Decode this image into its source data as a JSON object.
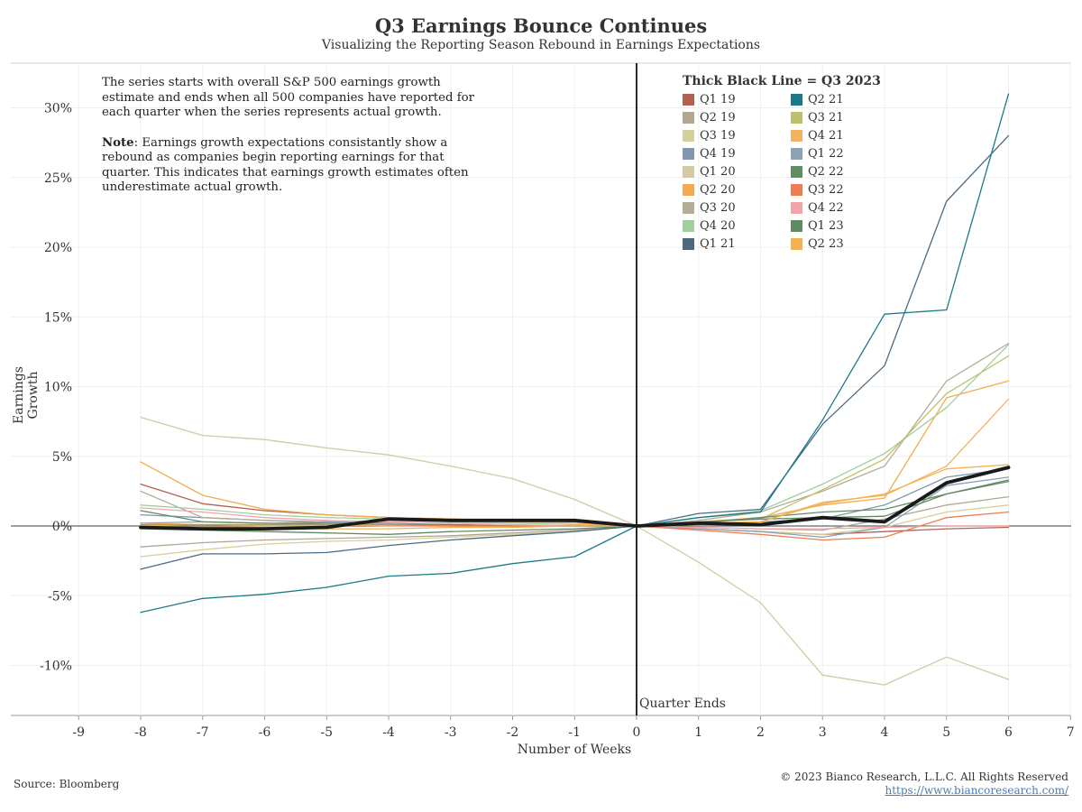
{
  "title": "Q3 Earnings Bounce Continues",
  "subtitle": "Visualizing the Reporting Season Rebound in Earnings Expectations",
  "note": {
    "paragraph1": "The series starts with overall S&P 500 earnings growth estimate and ends when all 500 companies have reported for each quarter when the series represents actual growth.",
    "note_label": "Note",
    "paragraph2": ": Earnings growth expectations consistantly show a rebound as companies begin reporting earnings for that quarter. This indicates that earnings growth estimates often underestimate actual growth."
  },
  "legend_title": "Thick Black Line = Q3 2023",
  "quarter_ends_label": "Quarter Ends",
  "footer": {
    "source": "Source: Bloomberg",
    "copyright": "© 2023 Bianco Research, L.L.C. All Rights Reserved",
    "url": "https://www.biancoresearch.com/"
  },
  "chart_data": {
    "type": "line",
    "xlabel": "Number of Weeks",
    "ylabel": "Earnings Growth",
    "xlim": [
      -9,
      7
    ],
    "ylim": [
      -13.5,
      33
    ],
    "x_ticks": [
      -9,
      -8,
      -7,
      -6,
      -5,
      -4,
      -3,
      -2,
      -1,
      0,
      1,
      2,
      3,
      4,
      5,
      6,
      7
    ],
    "y_ticks": [
      -10,
      -5,
      0,
      5,
      10,
      15,
      20,
      25,
      30
    ],
    "y_tick_labels": [
      "-10%",
      "-5%",
      "0%",
      "5%",
      "10%",
      "15%",
      "20%",
      "25%",
      "30%"
    ],
    "x": [
      -8,
      -7,
      -6,
      -5,
      -4,
      -3,
      -2,
      -1,
      0,
      1,
      2,
      3,
      4,
      5,
      6
    ],
    "grid": true,
    "legend_position": "top-right",
    "series": [
      {
        "name": "Q1 19",
        "color": "#b5614f",
        "values": [
          3.0,
          1.6,
          1.1,
          0.8,
          0.6,
          0.5,
          0.4,
          0.3,
          0.0,
          -0.2,
          -0.4,
          -0.6,
          -0.4,
          -0.2,
          -0.1
        ]
      },
      {
        "name": "Q2 19",
        "color": "#b3a792",
        "values": [
          -1.5,
          -1.2,
          -1.0,
          -0.9,
          -0.8,
          -0.7,
          -0.5,
          -0.3,
          0.0,
          -0.1,
          -0.2,
          -0.3,
          0.5,
          1.5,
          2.1
        ]
      },
      {
        "name": "Q3 19",
        "color": "#d5cf9c",
        "values": [
          -2.2,
          -1.7,
          -1.3,
          -1.1,
          -1.0,
          -0.8,
          -0.6,
          -0.4,
          0.0,
          -0.2,
          -0.4,
          -0.6,
          -0.1,
          1.0,
          1.5
        ]
      },
      {
        "name": "Q4 19",
        "color": "#8097ad",
        "values": [
          0.8,
          0.6,
          0.4,
          0.3,
          0.2,
          0.1,
          0.0,
          0.0,
          0.0,
          0.2,
          0.3,
          0.5,
          1.5,
          3.5,
          4.1
        ]
      },
      {
        "name": "Q1 20",
        "color": "#d3c9a4",
        "values": [
          7.8,
          6.5,
          6.2,
          5.6,
          5.1,
          4.3,
          3.4,
          1.9,
          0.0,
          -2.6,
          -5.5,
          -10.7,
          -11.4,
          -9.4,
          -11.0
        ]
      },
      {
        "name": "Q2 20",
        "color": "#f2ac4d",
        "values": [
          4.6,
          2.2,
          1.2,
          0.8,
          0.6,
          0.5,
          0.3,
          0.2,
          0.0,
          0.3,
          0.6,
          1.5,
          2.0,
          9.2,
          10.4
        ]
      },
      {
        "name": "Q3 20",
        "color": "#b8ab96",
        "values": [
          2.5,
          0.6,
          0.4,
          0.2,
          0.1,
          0.1,
          0.0,
          0.0,
          0.0,
          0.4,
          1.0,
          2.5,
          4.3,
          10.4,
          13.1
        ]
      },
      {
        "name": "Q4 20",
        "color": "#9fcf9f",
        "values": [
          1.5,
          1.2,
          0.8,
          0.6,
          0.5,
          0.3,
          0.2,
          0.1,
          0.0,
          0.6,
          1.1,
          3.0,
          5.2,
          8.5,
          13.0
        ]
      },
      {
        "name": "Q1 21",
        "color": "#4a6a84",
        "values": [
          -3.1,
          -2.0,
          -2.0,
          -1.9,
          -1.4,
          -1.0,
          -0.7,
          -0.4,
          0.0,
          0.9,
          1.2,
          7.3,
          11.5,
          23.3,
          28.0
        ]
      },
      {
        "name": "Q2 21",
        "color": "#1a7a8a",
        "values": [
          -6.2,
          -5.2,
          -4.9,
          -4.4,
          -3.6,
          -3.4,
          -2.7,
          -2.2,
          0.0,
          0.6,
          1.0,
          7.6,
          15.2,
          15.5,
          31.0
        ]
      },
      {
        "name": "Q3 21",
        "color": "#bdbf6a",
        "values": [
          0.0,
          0.1,
          0.0,
          0.0,
          0.1,
          0.1,
          0.0,
          0.0,
          0.0,
          0.3,
          0.5,
          2.6,
          4.8,
          9.5,
          12.2
        ]
      },
      {
        "name": "Q4 21",
        "color": "#f4b261",
        "values": [
          0.2,
          0.1,
          0.1,
          0.1,
          0.0,
          0.0,
          0.0,
          0.0,
          0.0,
          0.1,
          0.3,
          1.7,
          2.2,
          4.3,
          9.1
        ]
      },
      {
        "name": "Q1 22",
        "color": "#8aa2b4",
        "values": [
          0.2,
          0.3,
          0.2,
          0.1,
          0.1,
          0.0,
          0.0,
          0.0,
          0.0,
          -0.2,
          -0.4,
          -0.8,
          -0.1,
          2.9,
          3.5
        ]
      },
      {
        "name": "Q2 22",
        "color": "#5f8e65",
        "values": [
          1.1,
          0.3,
          0.2,
          0.2,
          0.1,
          0.1,
          0.0,
          0.0,
          0.0,
          0.2,
          0.6,
          1.0,
          1.2,
          2.3,
          3.2
        ]
      },
      {
        "name": "Q3 22",
        "color": "#ee7d52",
        "values": [
          0.1,
          0.1,
          0.1,
          0.1,
          0.1,
          0.0,
          0.0,
          0.0,
          0.0,
          -0.3,
          -0.6,
          -1.0,
          -0.8,
          0.6,
          1.0
        ]
      },
      {
        "name": "Q4 22",
        "color": "#f4a3a8",
        "values": [
          1.3,
          1.0,
          0.6,
          0.4,
          0.3,
          0.2,
          0.1,
          0.0,
          0.0,
          -0.1,
          -0.2,
          -0.2,
          -0.1,
          0.0,
          0.0
        ]
      },
      {
        "name": "Q1 23",
        "color": "#5f8a64",
        "values": [
          -0.2,
          -0.3,
          -0.4,
          -0.5,
          -0.6,
          -0.4,
          -0.3,
          -0.2,
          0.0,
          0.3,
          0.5,
          0.6,
          0.7,
          2.3,
          3.3
        ]
      },
      {
        "name": "Q2 23",
        "color": "#f6b04f",
        "values": [
          0.0,
          -0.1,
          -0.1,
          -0.2,
          -0.2,
          -0.1,
          -0.1,
          0.0,
          0.0,
          0.2,
          0.3,
          1.6,
          2.3,
          4.1,
          4.4
        ]
      },
      {
        "color": "#1a1a1a",
        "thick": true,
        "values": [
          -0.1,
          -0.2,
          -0.2,
          -0.1,
          0.5,
          0.4,
          0.4,
          0.4,
          0.0,
          0.2,
          0.1,
          0.6,
          0.3,
          3.1,
          4.2
        ]
      }
    ]
  }
}
